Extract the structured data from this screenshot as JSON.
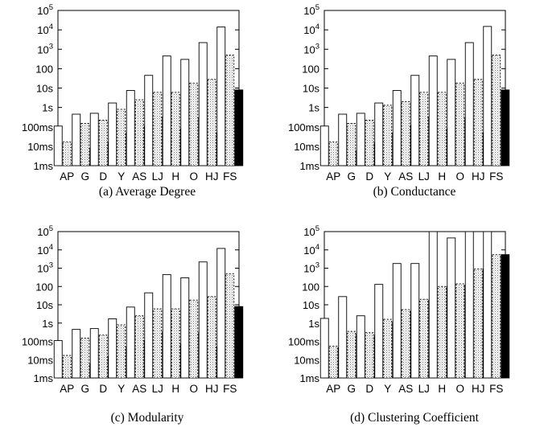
{
  "figure": {
    "captions": [
      "(a) Average Degree",
      "(b) Conductance",
      "(c) Modularity",
      "(d) Clustering Coefficient"
    ]
  },
  "chart_data": [
    {
      "type": "bar",
      "title": "(a) Average Degree",
      "y_scale": "log",
      "ylim_seconds": [
        0.001,
        100000
      ],
      "y_tick_labels": [
        "1ms",
        "10ms",
        "100ms",
        "1s",
        "10s",
        "100",
        "10^3",
        "10^4",
        "10^5"
      ],
      "categories": [
        "AP",
        "G",
        "D",
        "Y",
        "AS",
        "LJ",
        "H",
        "O",
        "HJ",
        "FS"
      ],
      "grid": false,
      "series": [
        {
          "fill": "white",
          "values": [
            0.11,
            0.45,
            0.5,
            1.7,
            7.5,
            45,
            450,
            300,
            2200,
            14000
          ]
        },
        {
          "fill": "dotted",
          "values": [
            0.017,
            0.15,
            0.22,
            0.8,
            2.5,
            6,
            6,
            18,
            28,
            500
          ]
        },
        {
          "fill": "black",
          "values": [
            null,
            0.008,
            0.016,
            0.05,
            0.11,
            0.33,
            0.08,
            0.3,
            0.05,
            8
          ]
        }
      ]
    },
    {
      "type": "bar",
      "title": "(b) Conductance",
      "y_scale": "log",
      "ylim_seconds": [
        0.001,
        100000
      ],
      "y_tick_labels": [
        "1ms",
        "10ms",
        "100ms",
        "1s",
        "10s",
        "100",
        "10^3",
        "10^4",
        "10^5"
      ],
      "categories": [
        "AP",
        "G",
        "D",
        "Y",
        "AS",
        "LJ",
        "H",
        "O",
        "HJ",
        "FS"
      ],
      "grid": false,
      "series": [
        {
          "fill": "white",
          "values": [
            0.11,
            0.45,
            0.5,
            1.7,
            7.5,
            45,
            450,
            300,
            2200,
            15000
          ]
        },
        {
          "fill": "dotted",
          "values": [
            0.017,
            0.15,
            0.22,
            1.3,
            2,
            6,
            6,
            18,
            28,
            500
          ]
        },
        {
          "fill": "black",
          "values": [
            null,
            0.006,
            0.015,
            0.05,
            0.12,
            0.33,
            0.08,
            0.3,
            0.05,
            8
          ]
        }
      ]
    },
    {
      "type": "bar",
      "title": "(c) Modularity",
      "y_scale": "log",
      "ylim_seconds": [
        0.001,
        100000
      ],
      "y_tick_labels": [
        "1ms",
        "10ms",
        "100ms",
        "1s",
        "10s",
        "100",
        "10^3",
        "10^4",
        "10^5"
      ],
      "categories": [
        "AP",
        "G",
        "D",
        "Y",
        "AS",
        "LJ",
        "H",
        "O",
        "HJ",
        "FS"
      ],
      "grid": false,
      "series": [
        {
          "fill": "white",
          "values": [
            0.11,
            0.45,
            0.5,
            1.7,
            7.5,
            45,
            450,
            300,
            2200,
            12000
          ]
        },
        {
          "fill": "dotted",
          "values": [
            0.017,
            0.15,
            0.22,
            0.8,
            2.5,
            6,
            6,
            18,
            28,
            500
          ]
        },
        {
          "fill": "black",
          "values": [
            null,
            0.006,
            0.015,
            0.05,
            0.11,
            0.33,
            0.07,
            0.3,
            0.05,
            8
          ]
        }
      ]
    },
    {
      "type": "bar",
      "title": "(d) Clustering Coefficient",
      "y_scale": "log",
      "ylim_seconds": [
        0.001,
        100000
      ],
      "y_tick_labels": [
        "1ms",
        "10ms",
        "100ms",
        "1s",
        "10s",
        "100",
        "10^3",
        "10^4",
        "10^5"
      ],
      "categories": [
        "AP",
        "G",
        "D",
        "Y",
        "AS",
        "LJ",
        "H",
        "O",
        "HJ",
        "FS"
      ],
      "grid": false,
      "series": [
        {
          "fill": "white",
          "values": [
            1.8,
            28,
            2.5,
            130,
            1800,
            1800,
            100000,
            45000,
            100000,
            100000
          ]
        },
        {
          "fill": "dotted",
          "values": [
            0.055,
            0.35,
            0.3,
            1.6,
            5.5,
            20,
            100,
            140,
            900,
            5500
          ]
        },
        {
          "fill": "black",
          "values": [
            0.045,
            0.25,
            0.2,
            1.1,
            4.5,
            18,
            100,
            120,
            900,
            5500
          ]
        }
      ]
    }
  ]
}
